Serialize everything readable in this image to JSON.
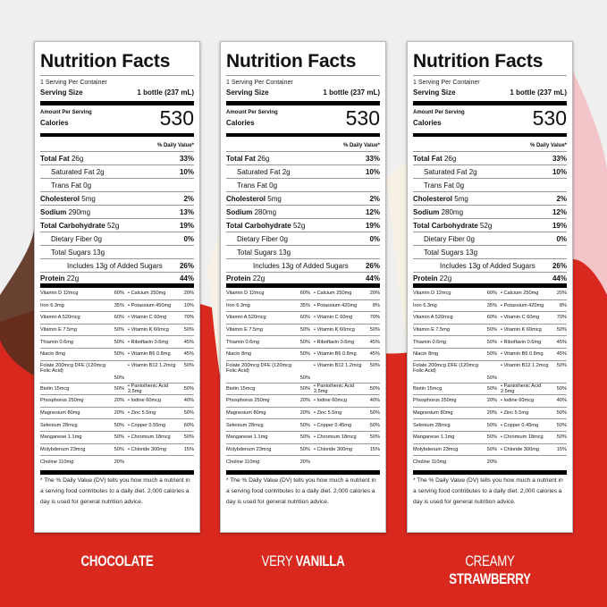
{
  "colors": {
    "background": "#efefef",
    "accent_red": "#d9281e",
    "chocolate": "#5a2e1c",
    "strawberry": "#f3c5c8"
  },
  "labels": [
    {
      "title": "Nutrition Facts",
      "servings": "1 Serving Per Container",
      "serving_size_label": "Serving Size",
      "serving_size": "1 bottle (237 mL)",
      "amount_per_serving": "Amount Per Serving",
      "calories_label": "Calories",
      "calories": "530",
      "dv_header": "% Daily Value*",
      "nutrients": [
        {
          "name": "Total Fat",
          "amount": "26g",
          "dv": "33%",
          "bold": true,
          "indent": 0
        },
        {
          "name": "Saturated Fat",
          "amount": "2g",
          "dv": "10%",
          "bold": false,
          "indent": 1
        },
        {
          "name": "Trans Fat",
          "amount": "0g",
          "dv": "",
          "bold": false,
          "indent": 1
        },
        {
          "name": "Cholesterol",
          "amount": "5mg",
          "dv": "2%",
          "bold": true,
          "indent": 0
        },
        {
          "name": "Sodium",
          "amount": "290mg",
          "dv": "13%",
          "bold": true,
          "indent": 0
        },
        {
          "name": "Total Carbohydrate",
          "amount": "52g",
          "dv": "19%",
          "bold": true,
          "indent": 0
        },
        {
          "name": "Dietary Fiber",
          "amount": "0g",
          "dv": "0%",
          "bold": false,
          "indent": 1
        },
        {
          "name": "Total Sugars",
          "amount": "13g",
          "dv": "",
          "bold": false,
          "indent": 1
        },
        {
          "name": "Includes 13g of Added Sugars",
          "amount": "",
          "dv": "26%",
          "bold": false,
          "indent": 2
        },
        {
          "name": "Protein",
          "amount": "22g",
          "dv": "44%",
          "bold": true,
          "indent": 0
        }
      ],
      "vitamins": [
        [
          "Vitamin D 12mcg",
          "60%",
          "Calcium 250mg",
          "20%"
        ],
        [
          "Iron 6.3mg",
          "35%",
          "Potassium 450mg",
          "10%"
        ],
        [
          "Vitamin A 520mcg",
          "60%",
          "Vitamin C 60mg",
          "70%"
        ],
        [
          "Vitamin E 7.5mg",
          "50%",
          "Vitamin K 60mcg",
          "50%"
        ],
        [
          "Thiamin 0.6mg",
          "50%",
          "Riboflavin 0.6mg",
          "45%"
        ],
        [
          "Niacin 8mg",
          "50%",
          "Vitamin B6 0.8mg",
          "45%"
        ],
        [
          "Folate 200mcg DFE (120mcg Folic Acid)",
          "50%",
          "Vitamin B12 1.2mcg",
          "50%"
        ],
        [
          "Biotin 15mcg",
          "50%",
          "Pantothenic Acid 2.5mg",
          "50%"
        ],
        [
          "Phosphorus 250mg",
          "20%",
          "Iodine 60mcg",
          "40%"
        ],
        [
          "Magnesium 80mg",
          "20%",
          "Zinc 5.5mg",
          "50%"
        ],
        [
          "Selenium 28mcg",
          "50%",
          "Copper 0.55mg",
          "60%"
        ],
        [
          "Manganese 1.1mg",
          "50%",
          "Chromium 18mcg",
          "50%"
        ],
        [
          "Molybdenum 23mcg",
          "50%",
          "Chloride 300mg",
          "15%"
        ],
        [
          "Choline 110mg",
          "20%",
          "",
          ""
        ]
      ],
      "footnote": "* The % Daily Value (DV) tells you how much a nutrient in a serving food contributes to a daily diet. 2,000 calories a day is used for general nutrition advice.",
      "flavor_light": "",
      "flavor_bold": "CHOCOLATE"
    },
    {
      "title": "Nutrition Facts",
      "servings": "1 Serving Per Container",
      "serving_size_label": "Serving Size",
      "serving_size": "1 bottle (237 mL)",
      "amount_per_serving": "Amount Per Serving",
      "calories_label": "Calories",
      "calories": "530",
      "dv_header": "% Daily Value*",
      "nutrients": [
        {
          "name": "Total Fat",
          "amount": "26g",
          "dv": "33%",
          "bold": true,
          "indent": 0
        },
        {
          "name": "Saturated Fat",
          "amount": "2g",
          "dv": "10%",
          "bold": false,
          "indent": 1
        },
        {
          "name": "Trans Fat",
          "amount": "0g",
          "dv": "",
          "bold": false,
          "indent": 1
        },
        {
          "name": "Cholesterol",
          "amount": "5mg",
          "dv": "2%",
          "bold": true,
          "indent": 0
        },
        {
          "name": "Sodium",
          "amount": "280mg",
          "dv": "12%",
          "bold": true,
          "indent": 0
        },
        {
          "name": "Total Carbohydrate",
          "amount": "52g",
          "dv": "19%",
          "bold": true,
          "indent": 0
        },
        {
          "name": "Dietary Fiber",
          "amount": "0g",
          "dv": "0%",
          "bold": false,
          "indent": 1
        },
        {
          "name": "Total Sugars",
          "amount": "13g",
          "dv": "",
          "bold": false,
          "indent": 1
        },
        {
          "name": "Includes 13g of Added Sugars",
          "amount": "",
          "dv": "26%",
          "bold": false,
          "indent": 2
        },
        {
          "name": "Protein",
          "amount": "22g",
          "dv": "44%",
          "bold": true,
          "indent": 0
        }
      ],
      "vitamins": [
        [
          "Vitamin D 12mcg",
          "60%",
          "Calcium 250mg",
          "20%"
        ],
        [
          "Iron 6.3mg",
          "35%",
          "Potassium 420mg",
          "8%"
        ],
        [
          "Vitamin A 520mcg",
          "60%",
          "Vitamin C 60mg",
          "70%"
        ],
        [
          "Vitamin E 7.5mg",
          "50%",
          "Vitamin K 60mcg",
          "50%"
        ],
        [
          "Thiamin 0.6mg",
          "50%",
          "Riboflavin 0.6mg",
          "45%"
        ],
        [
          "Niacin 8mg",
          "50%",
          "Vitamin B6 0.8mg",
          "45%"
        ],
        [
          "Folate 200mcg DFE (120mcg Folic Acid)",
          "50%",
          "Vitamin B12 1.2mcg",
          "50%"
        ],
        [
          "Biotin 15mcg",
          "50%",
          "Pantothenic Acid 2.5mg",
          "50%"
        ],
        [
          "Phosphorus 250mg",
          "20%",
          "Iodine 60mcg",
          "40%"
        ],
        [
          "Magnesium 80mg",
          "20%",
          "Zinc 5.5mg",
          "50%"
        ],
        [
          "Selenium 28mcg",
          "50%",
          "Copper 0.45mg",
          "50%"
        ],
        [
          "Manganese 1.1mg",
          "50%",
          "Chromium 18mcg",
          "50%"
        ],
        [
          "Molybdenum 23mcg",
          "50%",
          "Chloride 300mg",
          "15%"
        ],
        [
          "Choline 110mg",
          "20%",
          "",
          ""
        ]
      ],
      "footnote": "* The % Daily Value (DV) tells you how much a nutrient in a serving food contributes to a daily diet. 2,000 calories a day is used for general nutrition advice.",
      "flavor_light": "VERY ",
      "flavor_bold": "VANILLA"
    },
    {
      "title": "Nutrition Facts",
      "servings": "1 Serving Per Container",
      "serving_size_label": "Serving Size",
      "serving_size": "1 bottle (237 mL)",
      "amount_per_serving": "Amount Per Serving",
      "calories_label": "Calories",
      "calories": "530",
      "dv_header": "% Daily Value*",
      "nutrients": [
        {
          "name": "Total Fat",
          "amount": "26g",
          "dv": "33%",
          "bold": true,
          "indent": 0
        },
        {
          "name": "Saturated Fat",
          "amount": "2g",
          "dv": "10%",
          "bold": false,
          "indent": 1
        },
        {
          "name": "Trans Fat",
          "amount": "0g",
          "dv": "",
          "bold": false,
          "indent": 1
        },
        {
          "name": "Cholesterol",
          "amount": "5mg",
          "dv": "2%",
          "bold": true,
          "indent": 0
        },
        {
          "name": "Sodium",
          "amount": "280mg",
          "dv": "12%",
          "bold": true,
          "indent": 0
        },
        {
          "name": "Total Carbohydrate",
          "amount": "52g",
          "dv": "19%",
          "bold": true,
          "indent": 0
        },
        {
          "name": "Dietary Fiber",
          "amount": "0g",
          "dv": "0%",
          "bold": false,
          "indent": 1
        },
        {
          "name": "Total Sugars",
          "amount": "13g",
          "dv": "",
          "bold": false,
          "indent": 1
        },
        {
          "name": "Includes 13g of Added Sugars",
          "amount": "",
          "dv": "26%",
          "bold": false,
          "indent": 2
        },
        {
          "name": "Protein",
          "amount": "22g",
          "dv": "44%",
          "bold": true,
          "indent": 0
        }
      ],
      "vitamins": [
        [
          "Vitamin D 12mcg",
          "60%",
          "Calcium 250mg",
          "20%"
        ],
        [
          "Iron 6.3mg",
          "35%",
          "Potassium 420mg",
          "8%"
        ],
        [
          "Vitamin A 520mcg",
          "60%",
          "Vitamin C 60mg",
          "70%"
        ],
        [
          "Vitamin E 7.5mg",
          "50%",
          "Vitamin K 60mcg",
          "50%"
        ],
        [
          "Thiamin 0.6mg",
          "50%",
          "Riboflavin 0.6mg",
          "45%"
        ],
        [
          "Niacin 8mg",
          "50%",
          "Vitamin B6 0.8mg",
          "45%"
        ],
        [
          "Folate 200mcg DFE (120mcg Folic Acid)",
          "50%",
          "Vitamin B12 1.2mcg",
          "50%"
        ],
        [
          "Biotin 15mcg",
          "50%",
          "Pantothenic Acid 2.5mg",
          "50%"
        ],
        [
          "Phosphorus 250mg",
          "20%",
          "Iodine 60mcg",
          "40%"
        ],
        [
          "Magnesium 80mg",
          "20%",
          "Zinc 5.5mg",
          "50%"
        ],
        [
          "Selenium 28mcg",
          "50%",
          "Copper 0.45mg",
          "50%"
        ],
        [
          "Manganese 1.1mg",
          "50%",
          "Chromium 18mcg",
          "50%"
        ],
        [
          "Molybdenum 23mcg",
          "50%",
          "Chloride 300mg",
          "15%"
        ],
        [
          "Choline 110mg",
          "20%",
          "",
          ""
        ]
      ],
      "footnote": "* The % Daily Value (DV) tells you how much a nutrient in a serving food contributes to a daily diet. 2,000 calories a day is used for general nutrition advice.",
      "flavor_light": "CREAMY ",
      "flavor_bold": "STRAWBERRY"
    }
  ]
}
